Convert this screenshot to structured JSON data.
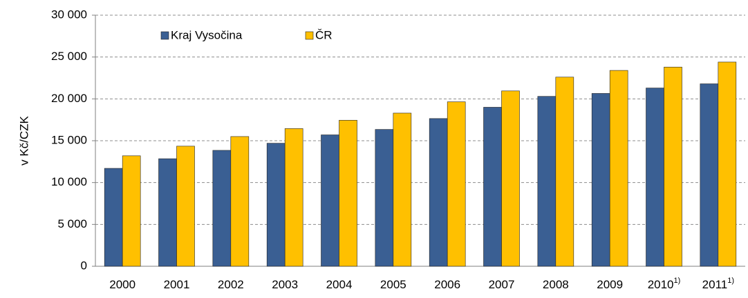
{
  "chart_data": {
    "type": "bar",
    "y_label": "v Kč/CZK",
    "categories": [
      "2000",
      "2001",
      "2002",
      "2003",
      "2004",
      "2005",
      "2006",
      "2007",
      "2008",
      "2009",
      "2010",
      "2011"
    ],
    "category_superscripts": {
      "10": "1)",
      "11": "1)"
    },
    "series": [
      {
        "name": "Kraj Vysočina",
        "color": "#3a5f93",
        "values": [
          11700,
          12850,
          13850,
          14700,
          15700,
          16350,
          17650,
          19000,
          20300,
          20650,
          21300,
          21800
        ]
      },
      {
        "name": "ČR",
        "color": "#ffc000",
        "values": [
          13200,
          14350,
          15500,
          16450,
          17450,
          18300,
          19650,
          20950,
          22600,
          23400,
          23800,
          24400
        ]
      }
    ],
    "ylim": [
      0,
      30000
    ],
    "yticks": [
      0,
      {
        "value": 5000,
        "label": "5 000"
      },
      {
        "value": 10000,
        "label": "10 000"
      },
      {
        "value": 15000,
        "label": "15 000"
      },
      {
        "value": 20000,
        "label": "20 000"
      },
      {
        "value": 25000,
        "label": "25 000"
      },
      {
        "value": 30000,
        "label": "30 000"
      }
    ],
    "grid": true
  }
}
